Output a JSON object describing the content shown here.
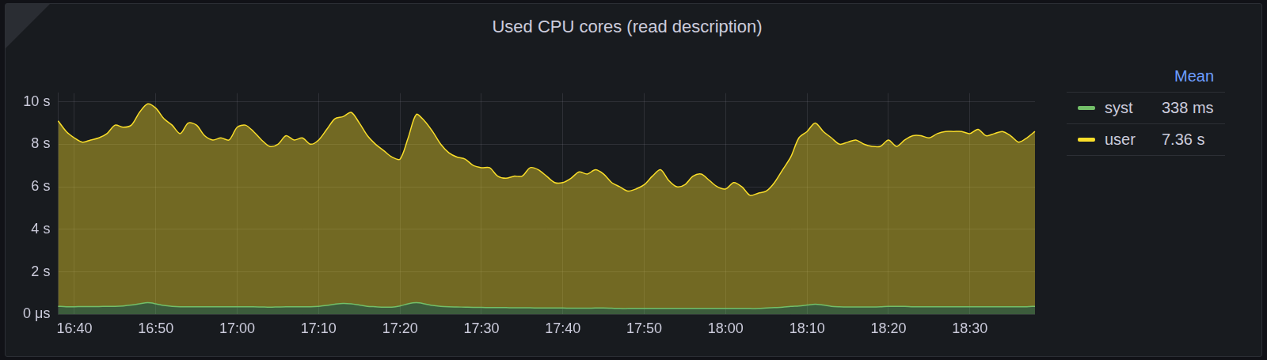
{
  "chart_data": {
    "type": "line",
    "title": "Used CPU cores (read description)",
    "stacked": true,
    "grid": true,
    "legend": "right",
    "legend_title": "Mean",
    "categories": [
      null,
      null,
      "16:40",
      null,
      null,
      null,
      null,
      null,
      null,
      null,
      null,
      null,
      "16:50",
      null,
      null,
      null,
      null,
      null,
      null,
      null,
      null,
      null,
      "17:00",
      null,
      null,
      null,
      null,
      null,
      null,
      null,
      null,
      null,
      "17:10",
      null,
      null,
      null,
      null,
      null,
      null,
      null,
      null,
      null,
      "17:20",
      null,
      null,
      null,
      null,
      null,
      null,
      null,
      null,
      null,
      "17:30",
      null,
      null,
      null,
      null,
      null,
      null,
      null,
      null,
      null,
      "17:40",
      null,
      null,
      null,
      null,
      null,
      null,
      null,
      null,
      null,
      "17:50",
      null,
      null,
      null,
      null,
      null,
      null,
      null,
      null,
      null,
      "18:00",
      null,
      null,
      null,
      null,
      null,
      null,
      null,
      null,
      null,
      "18:10",
      null,
      null,
      null,
      null,
      null,
      null,
      null,
      null,
      null,
      "18:20",
      null,
      null,
      null,
      null,
      null,
      null,
      null,
      null,
      null,
      "18:30",
      null,
      null,
      null,
      null,
      null,
      null,
      null,
      null
    ],
    "series": [
      {
        "name": "syst",
        "color": "#73bf69",
        "mean": {
          "value": 0.338,
          "label": "338 ms"
        },
        "values": [
          0.38,
          0.36,
          0.36,
          0.37,
          0.37,
          0.37,
          0.38,
          0.38,
          0.4,
          0.44,
          0.5,
          0.55,
          0.5,
          0.42,
          0.38,
          0.36,
          0.36,
          0.36,
          0.36,
          0.36,
          0.36,
          0.36,
          0.36,
          0.36,
          0.36,
          0.35,
          0.34,
          0.35,
          0.36,
          0.36,
          0.36,
          0.36,
          0.38,
          0.42,
          0.48,
          0.52,
          0.5,
          0.44,
          0.38,
          0.36,
          0.34,
          0.34,
          0.4,
          0.5,
          0.55,
          0.5,
          0.42,
          0.38,
          0.36,
          0.35,
          0.34,
          0.33,
          0.33,
          0.32,
          0.32,
          0.32,
          0.31,
          0.31,
          0.31,
          0.3,
          0.3,
          0.3,
          0.3,
          0.29,
          0.29,
          0.29,
          0.3,
          0.3,
          0.29,
          0.28,
          0.28,
          0.28,
          0.28,
          0.28,
          0.28,
          0.28,
          0.28,
          0.28,
          0.28,
          0.28,
          0.28,
          0.28,
          0.28,
          0.28,
          0.28,
          0.28,
          0.28,
          0.3,
          0.32,
          0.34,
          0.38,
          0.4,
          0.44,
          0.48,
          0.44,
          0.38,
          0.36,
          0.35,
          0.35,
          0.35,
          0.35,
          0.36,
          0.38,
          0.38,
          0.38,
          0.36,
          0.36,
          0.36,
          0.36,
          0.36,
          0.36,
          0.36,
          0.36,
          0.36,
          0.36,
          0.36,
          0.36,
          0.36,
          0.36,
          0.36,
          0.38
        ]
      },
      {
        "name": "user",
        "color": "#fade2a",
        "mean": {
          "value": 7.36,
          "label": "7.36 s"
        },
        "values": [
          8.72,
          8.24,
          7.94,
          7.73,
          7.83,
          7.93,
          8.12,
          8.52,
          8.4,
          8.46,
          9.0,
          9.35,
          9.2,
          8.78,
          8.52,
          8.14,
          8.64,
          8.54,
          8.04,
          7.84,
          7.94,
          7.84,
          8.44,
          8.54,
          8.24,
          7.85,
          7.56,
          7.65,
          8.04,
          7.84,
          7.94,
          7.64,
          7.82,
          8.28,
          8.72,
          8.78,
          9.0,
          8.56,
          8.02,
          7.64,
          7.36,
          7.06,
          6.9,
          7.8,
          8.85,
          8.6,
          8.18,
          7.62,
          7.24,
          7.05,
          6.96,
          6.67,
          6.57,
          6.58,
          6.18,
          6.08,
          6.19,
          6.19,
          6.59,
          6.5,
          6.2,
          5.9,
          5.9,
          6.11,
          6.41,
          6.31,
          6.5,
          6.3,
          5.91,
          5.72,
          5.52,
          5.62,
          5.82,
          6.22,
          6.52,
          6.02,
          5.72,
          5.82,
          6.22,
          6.32,
          6.02,
          5.72,
          5.62,
          5.92,
          5.72,
          5.32,
          5.42,
          5.5,
          5.88,
          6.46,
          7.02,
          7.9,
          8.16,
          8.52,
          8.16,
          7.92,
          7.64,
          7.75,
          7.85,
          7.65,
          7.55,
          7.54,
          7.82,
          7.52,
          7.82,
          8.04,
          8.04,
          7.94,
          8.14,
          8.24,
          8.24,
          8.24,
          8.14,
          8.34,
          8.04,
          8.14,
          8.24,
          8.04,
          7.74,
          7.94,
          8.22
        ]
      }
    ],
    "ylim": [
      0,
      10.4
    ],
    "yticks": [
      {
        "value": 0,
        "label": "0 μs"
      },
      {
        "value": 2,
        "label": "2 s"
      },
      {
        "value": 4,
        "label": "4 s"
      },
      {
        "value": 6,
        "label": "6 s"
      },
      {
        "value": 8,
        "label": "8 s"
      },
      {
        "value": 10,
        "label": "10 s"
      }
    ]
  }
}
